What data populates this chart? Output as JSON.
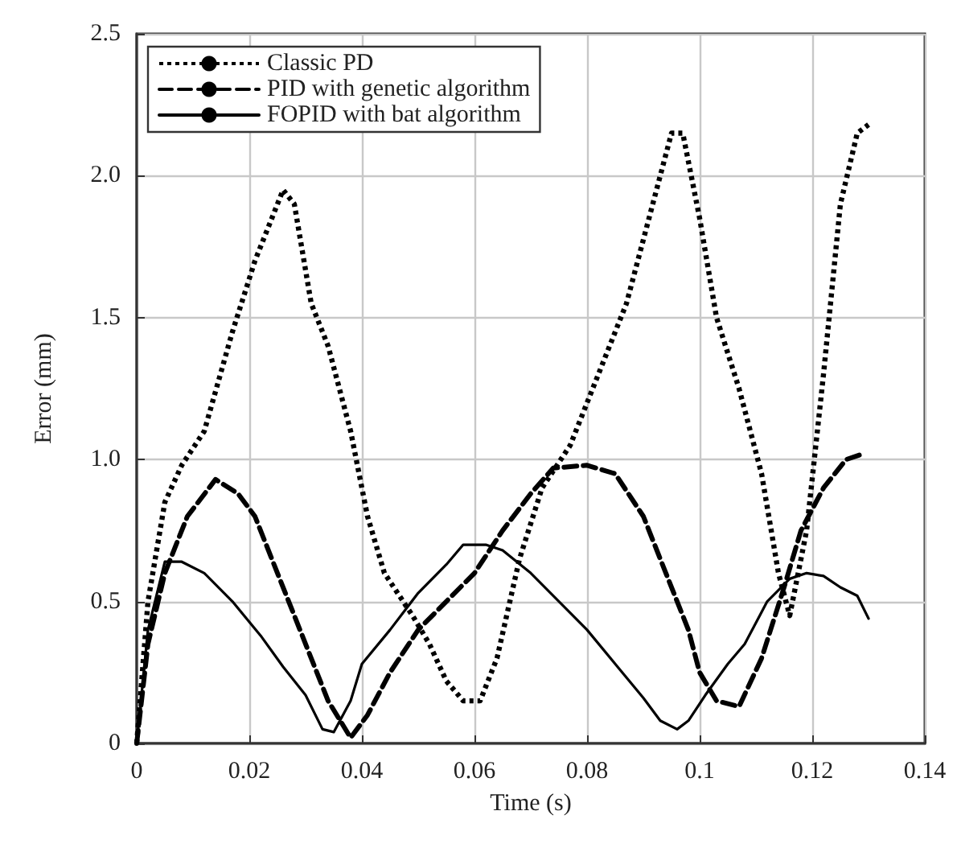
{
  "chart_data": {
    "type": "line",
    "xlabel": "Time (s)",
    "ylabel": "Error (mm)",
    "xlim": [
      0,
      0.14
    ],
    "xticks": [
      0,
      0.02,
      0.04,
      0.06,
      0.08,
      0.1,
      0.12,
      0.14
    ],
    "ylim": [
      0,
      2.5
    ],
    "yticks": [
      0,
      0.5,
      {
        "value": 1,
        "label": "1.0"
      },
      1.5,
      {
        "value": 2,
        "label": "2.0"
      },
      2.5
    ],
    "grid": true,
    "legend": "top left",
    "marker": "none",
    "series": [
      {
        "name": "Classic PD",
        "color": "#000000",
        "line_style": "dotted",
        "x": [
          0,
          0.002,
          0.005,
          0.008,
          0.012,
          0.017,
          0.021,
          0.026,
          0.028,
          0.031,
          0.034,
          0.038,
          0.041,
          0.044,
          0.049,
          0.052,
          0.055,
          0.058,
          0.061,
          0.064,
          0.068,
          0.072,
          0.077,
          0.082,
          0.087,
          0.091,
          0.095,
          0.097,
          0.1,
          0.103,
          0.107,
          0.111,
          0.114,
          0.116,
          0.119,
          0.122,
          0.125,
          0.128,
          0.13
        ],
        "values": [
          0,
          0.5,
          0.85,
          0.98,
          1.1,
          1.45,
          1.7,
          1.95,
          1.9,
          1.55,
          1.4,
          1.1,
          0.8,
          0.6,
          0.45,
          0.35,
          0.22,
          0.15,
          0.15,
          0.3,
          0.65,
          0.9,
          1.05,
          1.3,
          1.55,
          1.85,
          2.15,
          2.15,
          1.85,
          1.5,
          1.25,
          0.95,
          0.6,
          0.45,
          0.75,
          1.3,
          1.9,
          2.15,
          2.18
        ]
      },
      {
        "name": "PID with genetic algorithm",
        "color": "#000000",
        "line_style": "dashed",
        "x": [
          0,
          0.002,
          0.005,
          0.009,
          0.014,
          0.018,
          0.021,
          0.025,
          0.029,
          0.034,
          0.038,
          0.041,
          0.045,
          0.05,
          0.055,
          0.06,
          0.065,
          0.07,
          0.074,
          0.08,
          0.085,
          0.09,
          0.094,
          0.098,
          0.1,
          0.103,
          0.107,
          0.111,
          0.115,
          0.118,
          0.122,
          0.126,
          0.129
        ],
        "values": [
          0,
          0.35,
          0.6,
          0.8,
          0.93,
          0.88,
          0.8,
          0.6,
          0.4,
          0.15,
          0.02,
          0.1,
          0.25,
          0.4,
          0.5,
          0.6,
          0.75,
          0.88,
          0.97,
          0.98,
          0.95,
          0.8,
          0.6,
          0.4,
          0.25,
          0.15,
          0.13,
          0.3,
          0.55,
          0.75,
          0.9,
          1.0,
          1.02
        ]
      },
      {
        "name": "FOPID with bat algorithm",
        "color": "#000000",
        "line_style": "solid",
        "x": [
          0,
          0.002,
          0.005,
          0.008,
          0.012,
          0.017,
          0.022,
          0.026,
          0.03,
          0.033,
          0.035,
          0.038,
          0.04,
          0.045,
          0.05,
          0.055,
          0.058,
          0.062,
          0.065,
          0.07,
          0.075,
          0.08,
          0.085,
          0.09,
          0.093,
          0.096,
          0.098,
          0.101,
          0.105,
          0.108,
          0.112,
          0.116,
          0.119,
          0.122,
          0.125,
          0.128,
          0.13
        ],
        "values": [
          0,
          0.4,
          0.64,
          0.64,
          0.6,
          0.5,
          0.38,
          0.27,
          0.17,
          0.05,
          0.04,
          0.15,
          0.28,
          0.4,
          0.53,
          0.63,
          0.7,
          0.7,
          0.68,
          0.6,
          0.5,
          0.4,
          0.28,
          0.16,
          0.08,
          0.05,
          0.08,
          0.17,
          0.28,
          0.35,
          0.5,
          0.58,
          0.6,
          0.59,
          0.55,
          0.52,
          0.44
        ]
      }
    ]
  }
}
